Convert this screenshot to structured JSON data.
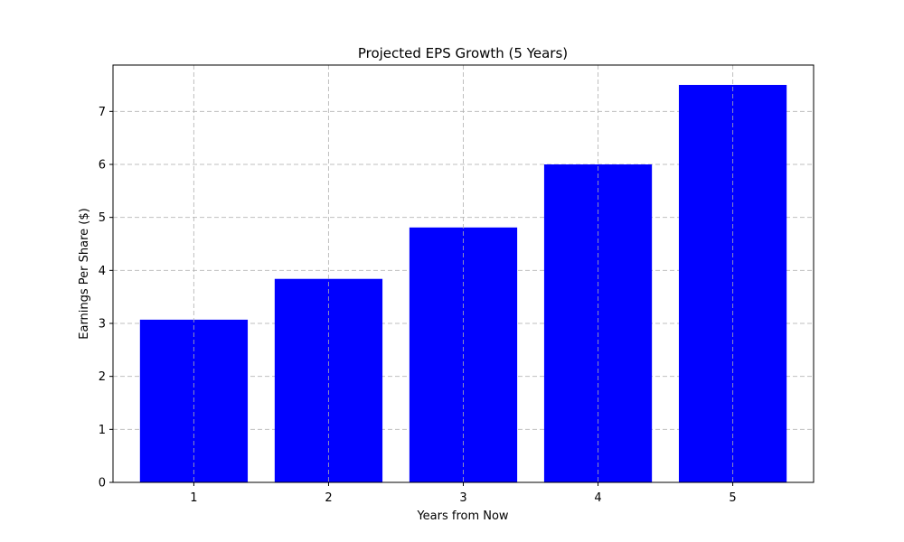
{
  "chart_data": {
    "type": "bar",
    "title": "Projected EPS Growth (5 Years)",
    "xlabel": "Years from Now",
    "ylabel": "Earnings Per Share ($)",
    "categories": [
      "1",
      "2",
      "3",
      "4",
      "5"
    ],
    "values": [
      3.07,
      3.84,
      4.81,
      6.0,
      7.5
    ],
    "ylim": [
      0,
      7.875
    ],
    "yticks": [
      "0",
      "1",
      "2",
      "3",
      "4",
      "5",
      "6",
      "7"
    ],
    "grid": true,
    "bar_color": "#0000ff"
  }
}
